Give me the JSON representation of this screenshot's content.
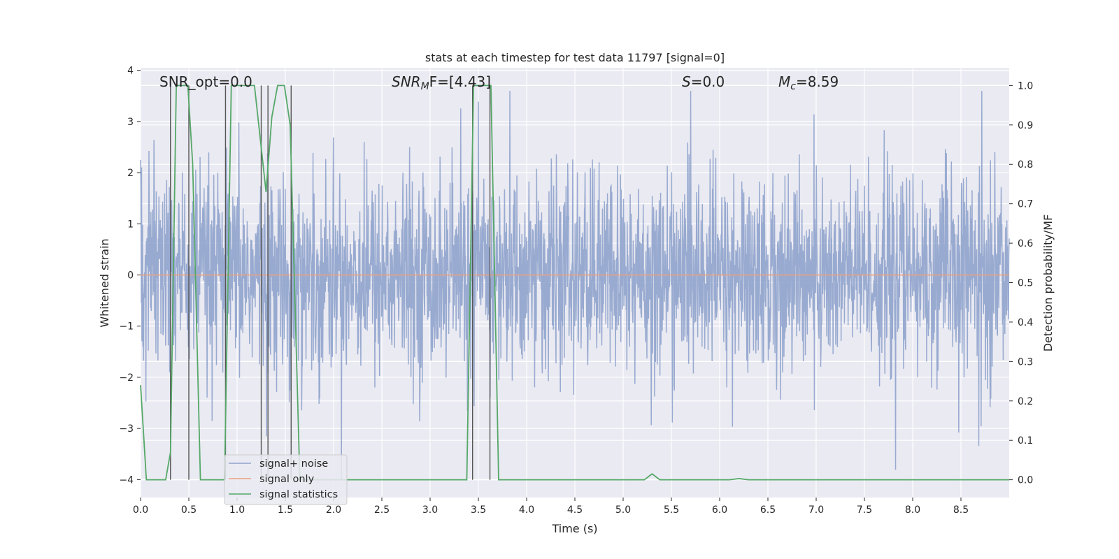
{
  "chart_data": {
    "type": "line",
    "title": "stats at each timestep for test data 11797 [signal=0]",
    "xlabel": "Time (s)",
    "ylabel_left": "Whitened strain",
    "ylabel_right": "Detection probability/MF",
    "xlim": [
      0.0,
      9.0
    ],
    "ylim_left": [
      -4.35,
      4.05
    ],
    "ylim_right": [
      -0.045,
      1.045
    ],
    "x_ticks": [
      "0.0",
      "0.5",
      "1.0",
      "1.5",
      "2.0",
      "2.5",
      "3.0",
      "3.5",
      "4.0",
      "4.5",
      "5.0",
      "5.5",
      "6.0",
      "6.5",
      "7.0",
      "7.5",
      "8.0",
      "8.5"
    ],
    "y_ticks_left": [
      "4",
      "3",
      "2",
      "1",
      "0",
      "−1",
      "−2",
      "−3",
      "−4"
    ],
    "y_ticks_right": [
      "1.0",
      "0.9",
      "0.8",
      "0.7",
      "0.6",
      "0.5",
      "0.4",
      "0.3",
      "0.2",
      "0.1",
      "0.0"
    ],
    "grid": true,
    "legend_position": "lower-left",
    "annotations": {
      "snr_opt": "SNR_opt=0.0",
      "snr_mf_base": "SNR",
      "snr_mf_sub": "M",
      "snr_mf_tail": "F=[4.43]",
      "s_var": "S",
      "s_val": "=0.0",
      "mc_var": "M",
      "mc_sub": "c",
      "mc_val": "=8.59"
    },
    "series": [
      {
        "name": "signal+ noise",
        "color": "#8fa3cc",
        "x_range": [
          0.0,
          9.0
        ],
        "description_values": "noise, amplitude mostly between -2 and 2.5, peaks up to 3.6 and down to -4.0",
        "peak_max": 3.6,
        "peak_min": -4.0
      },
      {
        "name": "signal only",
        "color": "#e8a082",
        "x": [
          0.0,
          9.0
        ],
        "y": [
          0.0,
          0.0
        ]
      },
      {
        "name": "signal statistics",
        "color": "#55a868",
        "axis": "right",
        "x": [
          0.0,
          0.06,
          0.26,
          0.31,
          0.37,
          0.49,
          0.54,
          0.62,
          0.87,
          0.94,
          1.0,
          1.18,
          1.3,
          1.36,
          1.42,
          1.49,
          1.55,
          1.65,
          1.75,
          3.38,
          3.45,
          3.5,
          3.63,
          3.71,
          5.22,
          5.3,
          5.38,
          6.1,
          6.2,
          6.3,
          9.0
        ],
        "y": [
          0.24,
          0.0,
          0.0,
          0.07,
          1.0,
          1.0,
          0.8,
          0.0,
          0.0,
          1.0,
          1.0,
          1.0,
          0.73,
          0.92,
          1.0,
          1.0,
          0.9,
          0.0,
          0.0,
          0.0,
          1.0,
          1.0,
          1.0,
          0.0,
          0.0,
          0.015,
          0.0,
          0.0,
          0.003,
          0.0,
          0.0
        ]
      }
    ],
    "vertical_markers_x": [
      0.31,
      0.5,
      0.88,
      1.25,
      1.32,
      1.56,
      3.44,
      3.62
    ]
  }
}
